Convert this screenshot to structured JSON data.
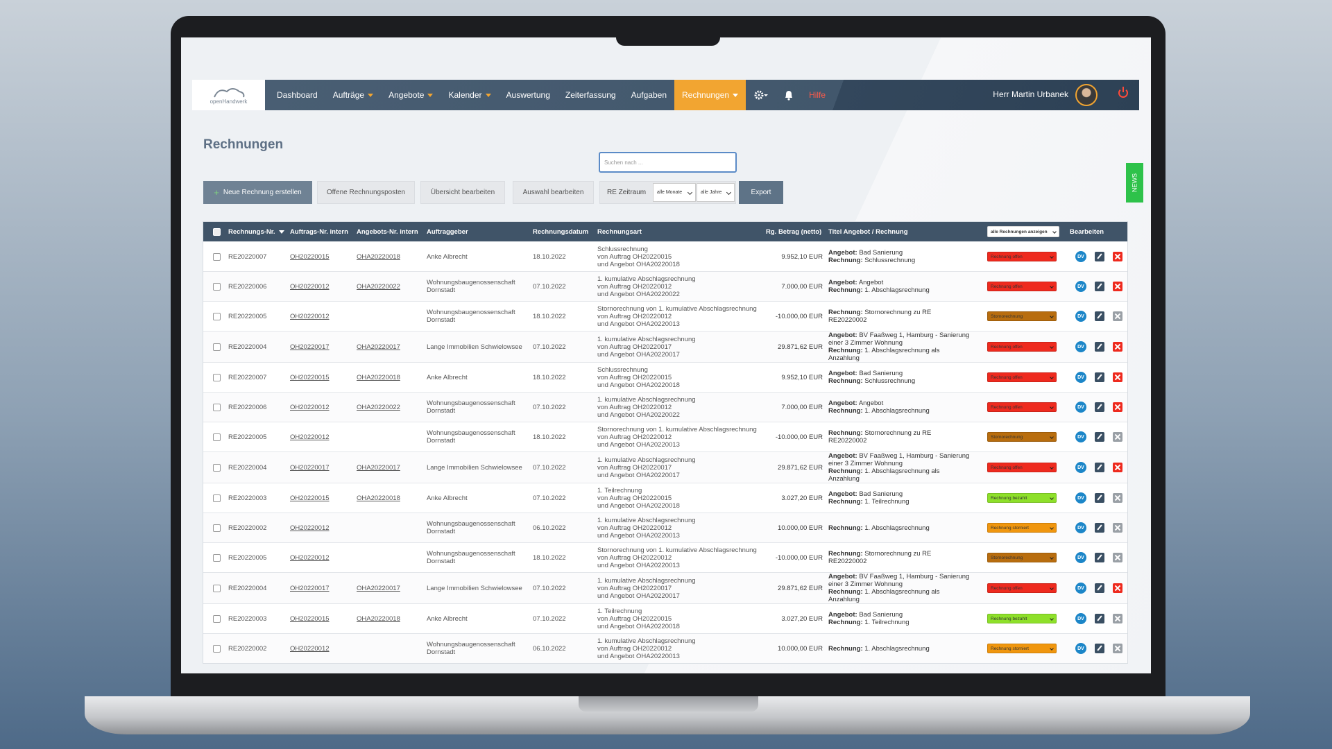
{
  "nav": {
    "logo": "openHandwerk",
    "items": [
      {
        "label": "Dashboard"
      },
      {
        "label": "Aufträge",
        "dropdown": true
      },
      {
        "label": "Angebote",
        "dropdown": true
      },
      {
        "label": "Kalender",
        "dropdown": true
      },
      {
        "label": "Auswertung"
      },
      {
        "label": "Zeiterfassung"
      },
      {
        "label": "Aufgaben"
      },
      {
        "label": "Rechnungen",
        "dropdown": true,
        "active": true
      }
    ],
    "help": "Hilfe",
    "user": "Herr Martin Urbanek"
  },
  "page_title": "Rechnungen",
  "search_placeholder": "Suchen nach ...",
  "buttons": {
    "new": "Neue Rechnung erstellen",
    "open_items": "Offene Rechnungsposten",
    "overview": "Übersicht bearbeiten",
    "selection": "Auswahl bearbeiten",
    "period": "RE Zeitraum",
    "months": "alle Monate",
    "years": "alle Jahre",
    "export": "Export"
  },
  "news": "NEWS",
  "table": {
    "columns": [
      "Rechnungs-Nr.",
      "Auftrags-Nr. intern",
      "Angebots-Nr. intern",
      "Auftraggeber",
      "Rechnungsdatum",
      "Rechnungsart",
      "Rg. Betrag (netto)",
      "Titel Angebot / Rechnung"
    ],
    "filter": "alle Rechnungen anzeigen",
    "edit": "Bearbeiten",
    "dv_label": "DV",
    "rows": [
      {
        "nr": "RE20220007",
        "auftrag": "OH20220015",
        "angebot": "OHA20220018",
        "kunde": "Anke Albrecht",
        "datum": "18.10.2022",
        "art": [
          "Schlussrechnung",
          "von Auftrag OH20220015",
          "und Angebot OHA20220018"
        ],
        "betrag": "9.952,10 EUR",
        "titel": [
          {
            "label": "Angebot:",
            "text": "Bad Sanierung"
          },
          {
            "label": "Rechnung:",
            "text": "Schlussrechnung"
          }
        ],
        "status": {
          "label": "Rechnung offen",
          "color": "#ee2a1e"
        },
        "cancellable": true
      },
      {
        "nr": "RE20220006",
        "auftrag": "OH20220012",
        "angebot": "OHA20220022",
        "kunde": "Wohnungsbaugenossenschaft Dornstadt",
        "datum": "07.10.2022",
        "art": [
          "1. kumulative Abschlagsrechnung",
          "von Auftrag OH20220012",
          "und Angebot OHA20220022"
        ],
        "betrag": "7.000,00 EUR",
        "titel": [
          {
            "label": "Angebot:",
            "text": "Angebot"
          },
          {
            "label": "Rechnung:",
            "text": "1. Abschlagsrechnung"
          }
        ],
        "status": {
          "label": "Rechnung offen",
          "color": "#ee2a1e"
        },
        "cancellable": true
      },
      {
        "nr": "RE20220005",
        "auftrag": "OH20220012",
        "kunde": "Wohnungsbaugenossenschaft Dornstadt",
        "datum": "18.10.2022",
        "art": [
          "Stornorechnung von 1. kumulative Abschlagsrechnung",
          "von Auftrag OH20220012",
          "und Angebot OHA20220013"
        ],
        "betrag": "-10.000,00 EUR",
        "titel": [
          {
            "label": "Rechnung:",
            "text": "Stornorechnung zu RE RE20220002"
          }
        ],
        "status": {
          "label": "Stornorechnung",
          "color": "#b86d0e"
        },
        "cancellable": false
      },
      {
        "nr": "RE20220004",
        "auftrag": "OH20220017",
        "angebot": "OHA20220017",
        "kunde": "Lange Immobilien Schwielowsee",
        "datum": "07.10.2022",
        "art": [
          "1. kumulative Abschlagsrechnung",
          "von Auftrag OH20220017",
          "und Angebot OHA20220017"
        ],
        "betrag": "29.871,62 EUR",
        "titel": [
          {
            "label": "Angebot:",
            "text": "BV Faaßweg 1, Hamburg - Sanierung einer 3 Zimmer Wohnung"
          },
          {
            "label": "Rechnung:",
            "text": "1. Abschlagsrechnung als Anzahlung"
          }
        ],
        "status": {
          "label": "Rechnung offen",
          "color": "#ee2a1e"
        },
        "cancellable": true
      },
      {
        "nr": "RE20220007",
        "auftrag": "OH20220015",
        "angebot": "OHA20220018",
        "kunde": "Anke Albrecht",
        "datum": "18.10.2022",
        "art": [
          "Schlussrechnung",
          "von Auftrag OH20220015",
          "und Angebot OHA20220018"
        ],
        "betrag": "9.952,10 EUR",
        "titel": [
          {
            "label": "Angebot:",
            "text": "Bad Sanierung"
          },
          {
            "label": "Rechnung:",
            "text": "Schlussrechnung"
          }
        ],
        "status": {
          "label": "Rechnung offen",
          "color": "#ee2a1e"
        },
        "cancellable": true
      },
      {
        "nr": "RE20220006",
        "auftrag": "OH20220012",
        "angebot": "OHA20220022",
        "kunde": "Wohnungsbaugenossenschaft Dornstadt",
        "datum": "07.10.2022",
        "art": [
          "1. kumulative Abschlagsrechnung",
          "von Auftrag OH20220012",
          "und Angebot OHA20220022"
        ],
        "betrag": "7.000,00 EUR",
        "titel": [
          {
            "label": "Angebot:",
            "text": "Angebot"
          },
          {
            "label": "Rechnung:",
            "text": "1. Abschlagsrechnung"
          }
        ],
        "status": {
          "label": "Rechnung offen",
          "color": "#ee2a1e"
        },
        "cancellable": true
      },
      {
        "nr": "RE20220005",
        "auftrag": "OH20220012",
        "kunde": "Wohnungsbaugenossenschaft Dornstadt",
        "datum": "18.10.2022",
        "art": [
          "Stornorechnung von 1. kumulative Abschlagsrechnung",
          "von Auftrag OH20220012",
          "und Angebot OHA20220013"
        ],
        "betrag": "-10.000,00 EUR",
        "titel": [
          {
            "label": "Rechnung:",
            "text": "Stornorechnung zu RE RE20220002"
          }
        ],
        "status": {
          "label": "Stornorechnung",
          "color": "#b86d0e"
        },
        "cancellable": false
      },
      {
        "nr": "RE20220004",
        "auftrag": "OH20220017",
        "angebot": "OHA20220017",
        "kunde": "Lange Immobilien Schwielowsee",
        "datum": "07.10.2022",
        "art": [
          "1. kumulative Abschlagsrechnung",
          "von Auftrag OH20220017",
          "und Angebot OHA20220017"
        ],
        "betrag": "29.871,62 EUR",
        "titel": [
          {
            "label": "Angebot:",
            "text": "BV Faaßweg 1, Hamburg - Sanierung einer 3 Zimmer Wohnung"
          },
          {
            "label": "Rechnung:",
            "text": "1. Abschlagsrechnung als Anzahlung"
          }
        ],
        "status": {
          "label": "Rechnung offen",
          "color": "#ee2a1e"
        },
        "cancellable": true
      },
      {
        "nr": "RE20220003",
        "auftrag": "OH20220015",
        "angebot": "OHA20220018",
        "kunde": "Anke Albrecht",
        "datum": "07.10.2022",
        "art": [
          "1. Teilrechnung",
          "von Auftrag OH20220015",
          "und Angebot OHA20220018"
        ],
        "betrag": "3.027,20 EUR",
        "titel": [
          {
            "label": "Angebot:",
            "text": "Bad Sanierung"
          },
          {
            "label": "Rechnung:",
            "text": "1. Teilrechnung"
          }
        ],
        "status": {
          "label": "Rechnung bezahlt",
          "color": "#8ee02a"
        },
        "cancellable": false
      },
      {
        "nr": "RE20220002",
        "auftrag": "OH20220012",
        "kunde": "Wohnungsbaugenossenschaft Dornstadt",
        "datum": "06.10.2022",
        "art": [
          "1. kumulative Abschlagsrechnung",
          "von Auftrag OH20220012",
          "und Angebot OHA20220013"
        ],
        "betrag": "10.000,00 EUR",
        "titel": [
          {
            "label": "Rechnung:",
            "text": "1. Abschlagsrechnung"
          }
        ],
        "status": {
          "label": "Rechnung storniert",
          "color": "#f0960e"
        },
        "cancellable": false
      },
      {
        "nr": "RE20220005",
        "auftrag": "OH20220012",
        "kunde": "Wohnungsbaugenossenschaft Dornstadt",
        "datum": "18.10.2022",
        "art": [
          "Stornorechnung von 1. kumulative Abschlagsrechnung",
          "von Auftrag OH20220012",
          "und Angebot OHA20220013"
        ],
        "betrag": "-10.000,00 EUR",
        "titel": [
          {
            "label": "Rechnung:",
            "text": "Stornorechnung zu RE RE20220002"
          }
        ],
        "status": {
          "label": "Stornorechnung",
          "color": "#b86d0e"
        },
        "cancellable": false
      },
      {
        "nr": "RE20220004",
        "auftrag": "OH20220017",
        "angebot": "OHA20220017",
        "kunde": "Lange Immobilien Schwielowsee",
        "datum": "07.10.2022",
        "art": [
          "1. kumulative Abschlagsrechnung",
          "von Auftrag OH20220017",
          "und Angebot OHA20220017"
        ],
        "betrag": "29.871,62 EUR",
        "titel": [
          {
            "label": "Angebot:",
            "text": "BV Faaßweg 1, Hamburg - Sanierung einer 3 Zimmer Wohnung"
          },
          {
            "label": "Rechnung:",
            "text": "1. Abschlagsrechnung als Anzahlung"
          }
        ],
        "status": {
          "label": "Rechnung offen",
          "color": "#ee2a1e"
        },
        "cancellable": true
      },
      {
        "nr": "RE20220003",
        "auftrag": "OH20220015",
        "angebot": "OHA20220018",
        "kunde": "Anke Albrecht",
        "datum": "07.10.2022",
        "art": [
          "1. Teilrechnung",
          "von Auftrag OH20220015",
          "und Angebot OHA20220018"
        ],
        "betrag": "3.027,20 EUR",
        "titel": [
          {
            "label": "Angebot:",
            "text": "Bad Sanierung"
          },
          {
            "label": "Rechnung:",
            "text": "1. Teilrechnung"
          }
        ],
        "status": {
          "label": "Rechnung bezahlt",
          "color": "#8ee02a"
        },
        "cancellable": false
      },
      {
        "nr": "RE20220002",
        "auftrag": "OH20220012",
        "kunde": "Wohnungsbaugenossenschaft Dornstadt",
        "datum": "06.10.2022",
        "art": [
          "1. kumulative Abschlagsrechnung",
          "von Auftrag OH20220012",
          "und Angebot OHA20220013"
        ],
        "betrag": "10.000,00 EUR",
        "titel": [
          {
            "label": "Rechnung:",
            "text": "1. Abschlagsrechnung"
          }
        ],
        "status": {
          "label": "Rechnung storniert",
          "color": "#f0960e"
        },
        "cancellable": false
      }
    ]
  }
}
